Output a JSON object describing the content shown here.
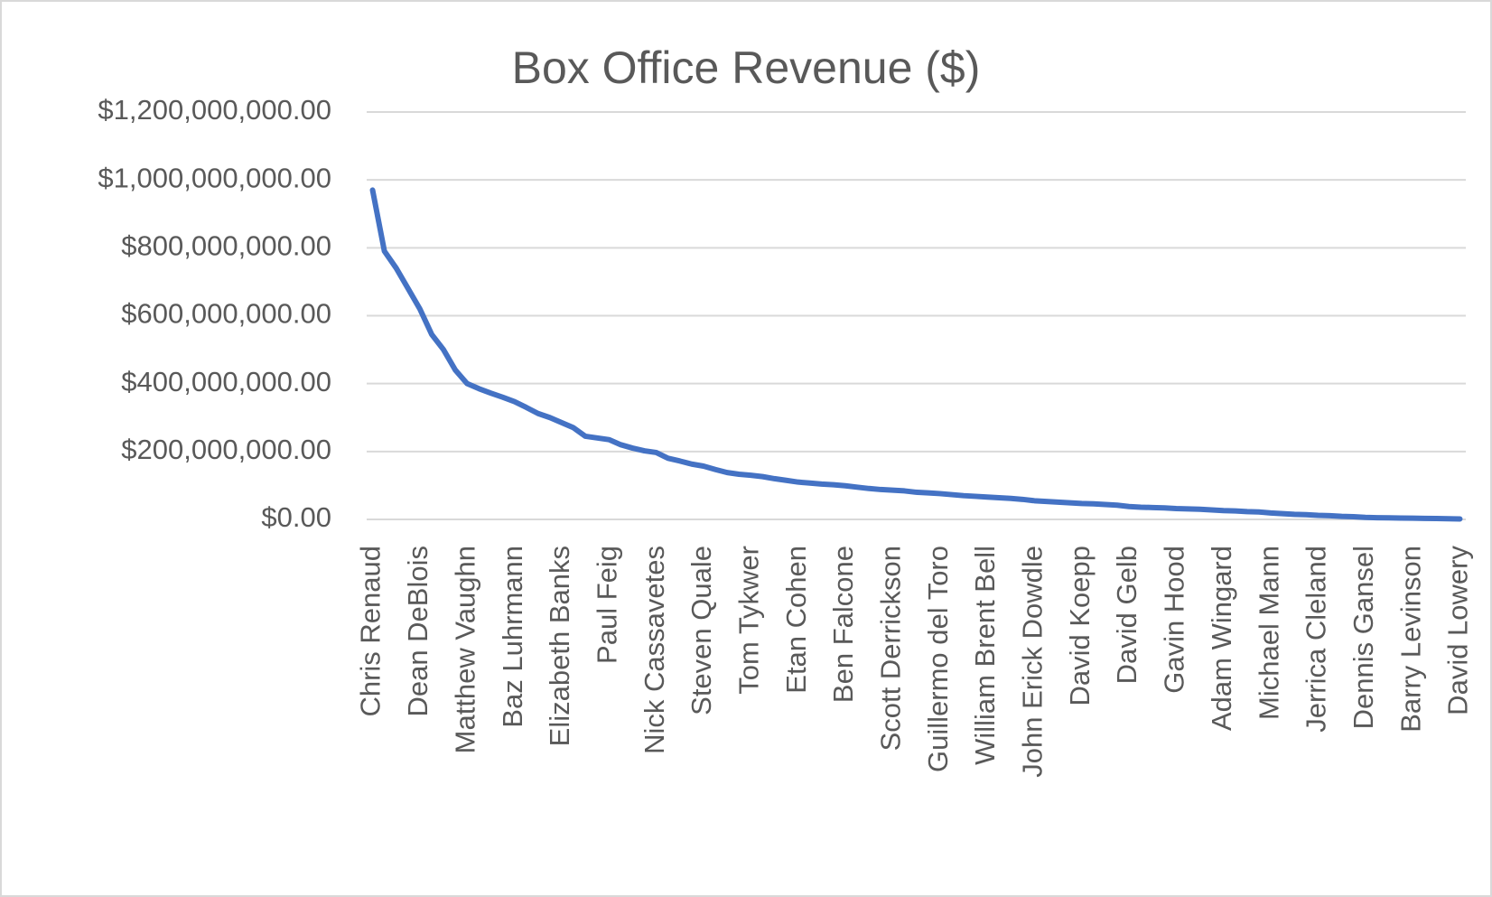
{
  "chart_data": {
    "type": "line",
    "title": "Box Office Revenue ($)",
    "categories": [
      "Chris Renaud",
      null,
      null,
      null,
      "Dean DeBlois",
      null,
      null,
      null,
      "Matthew Vaughn",
      null,
      null,
      null,
      "Baz Luhrmann",
      null,
      null,
      null,
      "Elizabeth Banks",
      null,
      null,
      null,
      "Paul Feig",
      null,
      null,
      null,
      "Nick Cassavetes",
      null,
      null,
      null,
      "Steven Quale",
      null,
      null,
      null,
      "Tom Tykwer",
      null,
      null,
      null,
      "Etan Cohen",
      null,
      null,
      null,
      "Ben Falcone",
      null,
      null,
      null,
      "Scott Derrickson",
      null,
      null,
      null,
      "Guillermo del Toro",
      null,
      null,
      null,
      "William Brent Bell",
      null,
      null,
      null,
      "John Erick Dowdle",
      null,
      null,
      null,
      "David Koepp",
      null,
      null,
      null,
      "David Gelb",
      null,
      null,
      null,
      "Gavin Hood",
      null,
      null,
      null,
      "Adam Wingard",
      null,
      null,
      null,
      "Michael Mann",
      null,
      null,
      null,
      "Jerrica Cleland",
      null,
      null,
      null,
      "Dennis Gansel",
      null,
      null,
      null,
      "Barry Levinson",
      null,
      null,
      null,
      "David Lowery"
    ],
    "series": [
      {
        "name": "Box Office Revenue ($)",
        "color": "#4472c4",
        "values": [
          970000000,
          790000000,
          740000000,
          680000000,
          620000000,
          545000000,
          500000000,
          440000000,
          400000000,
          385000000,
          372000000,
          360000000,
          347000000,
          330000000,
          312000000,
          300000000,
          285000000,
          270000000,
          245000000,
          240000000,
          235000000,
          220000000,
          210000000,
          202000000,
          197000000,
          180000000,
          172000000,
          163000000,
          157000000,
          147000000,
          138000000,
          133000000,
          130000000,
          126000000,
          120000000,
          115000000,
          110000000,
          107000000,
          104000000,
          102000000,
          99000000,
          95000000,
          91000000,
          88000000,
          86000000,
          84000000,
          80000000,
          78000000,
          76000000,
          73000000,
          70000000,
          68000000,
          66000000,
          64000000,
          62000000,
          59000000,
          55000000,
          53000000,
          51000000,
          49000000,
          47000000,
          46000000,
          44000000,
          42000000,
          38000000,
          36000000,
          35000000,
          34000000,
          32000000,
          31000000,
          30000000,
          28000000,
          26000000,
          25000000,
          23000000,
          22000000,
          19000000,
          17000000,
          15000000,
          14000000,
          12000000,
          11000000,
          9000000,
          8000000,
          6000000,
          5000000,
          4500000,
          4000000,
          3500000,
          3000000,
          2500000,
          2000000,
          1500000
        ]
      }
    ],
    "ylim": [
      0,
      1200000000
    ],
    "yticks": [
      {
        "value": 0,
        "label": "$0.00"
      },
      {
        "value": 200000000,
        "label": "$200,000,000.00"
      },
      {
        "value": 400000000,
        "label": "$400,000,000.00"
      },
      {
        "value": 600000000,
        "label": "$600,000,000.00"
      },
      {
        "value": 800000000,
        "label": "$800,000,000.00"
      },
      {
        "value": 1000000000,
        "label": "$1,000,000,000.00"
      },
      {
        "value": 1200000000,
        "label": "$1,200,000,000.00"
      }
    ],
    "grid": true
  }
}
